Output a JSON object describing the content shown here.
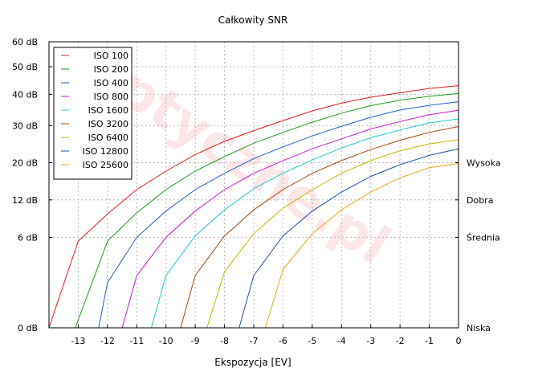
{
  "chart_data": {
    "type": "line",
    "title": "Całkowity SNR",
    "xlabel": "Ekspozycja [EV]",
    "ylabel": "",
    "xlim": [
      -14,
      0
    ],
    "ylim": [
      0,
      60
    ],
    "y_scale": "sqrt",
    "x_ticks": [
      -13,
      -12,
      -11,
      -10,
      -9,
      -8,
      -7,
      -6,
      -5,
      -4,
      -3,
      -2,
      -1,
      0
    ],
    "x_tick_labels": [
      "-13",
      "-12",
      "-11",
      "-10",
      "-9",
      "-8",
      "-7",
      "-6",
      "-5",
      "-4",
      "-3",
      "-2",
      "-1",
      "0"
    ],
    "y_ticks": [
      0,
      6,
      12,
      20,
      30,
      40,
      50,
      60
    ],
    "y_tick_labels": [
      "0 dB",
      "6 dB",
      "12 dB",
      "20 dB",
      "30 dB",
      "40 dB",
      "50 dB",
      "60 dB"
    ],
    "right_labels": [
      {
        "y": 20,
        "label": "Wysoka"
      },
      {
        "y": 12,
        "label": "Dobra"
      },
      {
        "y": 6,
        "label": "Średnia"
      },
      {
        "y": 0,
        "label": "Niska"
      }
    ],
    "grid": true,
    "legend_position": "top-left",
    "watermark": "Optyczne.pl",
    "series": [
      {
        "name": "ISO 100",
        "color": "#e41a1c",
        "x": [
          -14,
          -13,
          -12,
          -11,
          -10,
          -9,
          -8,
          -7,
          -6,
          -5,
          -4,
          -3,
          -2,
          -1,
          0
        ],
        "y": [
          0,
          5.5,
          9.5,
          14.0,
          18.0,
          22.0,
          25.5,
          28.5,
          31.5,
          34.5,
          37.0,
          39.0,
          40.5,
          42.0,
          43.0
        ]
      },
      {
        "name": "ISO 200",
        "color": "#1a9e1a",
        "x": [
          -13.1,
          -12,
          -11,
          -10,
          -9,
          -8,
          -7,
          -6,
          -5,
          -4,
          -3,
          -2,
          -1,
          0
        ],
        "y": [
          0,
          5.5,
          9.7,
          14.0,
          18.0,
          21.5,
          25.0,
          28.0,
          31.0,
          33.8,
          36.2,
          38.0,
          39.3,
          40.3
        ]
      },
      {
        "name": "ISO 400",
        "color": "#1f5fd0",
        "x": [
          -12.3,
          -12,
          -11,
          -10,
          -9,
          -8,
          -7,
          -6,
          -5,
          -4,
          -3,
          -2,
          -1,
          0
        ],
        "y": [
          0,
          1.5,
          6.0,
          10.0,
          14.0,
          17.5,
          21.0,
          24.0,
          27.0,
          29.8,
          32.5,
          34.8,
          36.3,
          37.5
        ]
      },
      {
        "name": "ISO 800",
        "color": "#cc18c8",
        "x": [
          -11.5,
          -11,
          -10,
          -9,
          -8,
          -7,
          -6,
          -5,
          -4,
          -3,
          -2,
          -1,
          0
        ],
        "y": [
          0,
          2.0,
          6.0,
          10.0,
          14.0,
          17.5,
          20.5,
          23.5,
          26.2,
          29.0,
          31.2,
          33.3,
          34.7
        ]
      },
      {
        "name": "ISO 1600",
        "color": "#1ec8d8",
        "x": [
          -10.5,
          -10,
          -9,
          -8,
          -7,
          -6,
          -5,
          -4,
          -3,
          -2,
          -1,
          0
        ],
        "y": [
          0,
          2.0,
          6.2,
          10.2,
          14.2,
          17.5,
          20.7,
          23.7,
          26.5,
          28.7,
          30.8,
          32.0
        ]
      },
      {
        "name": "ISO 3200",
        "color": "#a84810",
        "x": [
          -9.5,
          -9,
          -8,
          -7,
          -6,
          -5,
          -4,
          -3,
          -2,
          -1,
          0
        ],
        "y": [
          0,
          2.0,
          6.2,
          10.2,
          14.0,
          17.5,
          20.5,
          23.3,
          25.8,
          28.0,
          29.7
        ]
      },
      {
        "name": "ISO 6400",
        "color": "#c8b400",
        "x": [
          -8.6,
          -8,
          -7,
          -6,
          -5,
          -4,
          -3,
          -2,
          -1,
          0
        ],
        "y": [
          0,
          2.3,
          6.5,
          10.5,
          14.0,
          17.5,
          20.5,
          23.0,
          24.8,
          26.0
        ]
      },
      {
        "name": "ISO 12800",
        "color": "#1f4fb0",
        "x": [
          -7.5,
          -7,
          -6,
          -5,
          -4,
          -3,
          -2,
          -1,
          0
        ],
        "y": [
          0,
          2.0,
          6.2,
          10.0,
          13.5,
          16.8,
          19.5,
          21.8,
          23.5
        ]
      },
      {
        "name": "ISO 25600",
        "color": "#f0a818",
        "x": [
          -6.6,
          -6,
          -5,
          -4,
          -3,
          -2,
          -1,
          0
        ],
        "y": [
          0,
          2.5,
          6.5,
          10.2,
          13.5,
          16.5,
          18.8,
          19.8
        ]
      }
    ]
  }
}
